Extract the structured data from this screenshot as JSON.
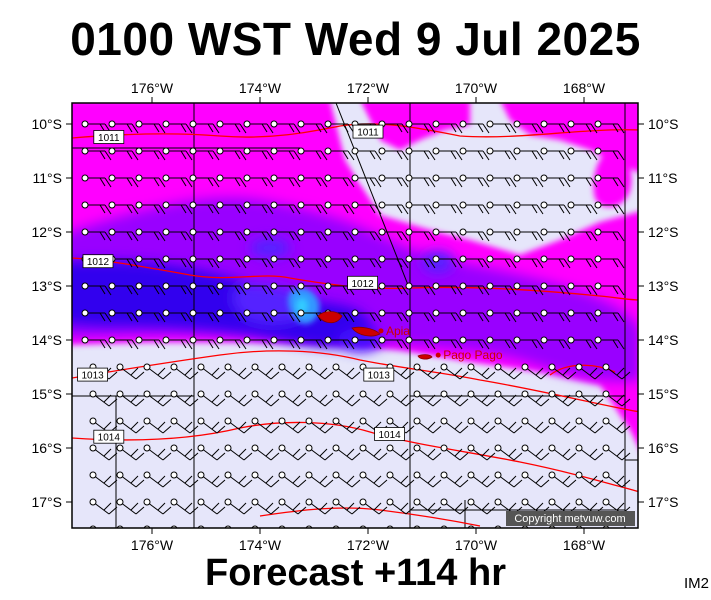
{
  "header": {
    "title": "0100 WST Wed 9 Jul 2025"
  },
  "footer": {
    "forecast": "Forecast +114 hr"
  },
  "corner_label": "IM2",
  "copyright": "Copyright metvuw.com",
  "colors": {
    "background": "#e6e6fa",
    "rain_light": "#ff00ff",
    "rain_medium": "#9900ff",
    "rain_heavy": "#3300ee",
    "rain_extreme": "#3399ff",
    "isobar": "#ff0000",
    "land": "#cc0000"
  },
  "map": {
    "lon_ticks": [
      {
        "label": "176°W",
        "lon": -176
      },
      {
        "label": "174°W",
        "lon": -174
      },
      {
        "label": "172°W",
        "lon": -172
      },
      {
        "label": "170°W",
        "lon": -170
      },
      {
        "label": "168°W",
        "lon": -168
      }
    ],
    "lat_ticks": [
      {
        "label": "10°S",
        "lat": -10
      },
      {
        "label": "11°S",
        "lat": -11
      },
      {
        "label": "12°S",
        "lat": -12
      },
      {
        "label": "13°S",
        "lat": -13
      },
      {
        "label": "14°S",
        "lat": -14
      },
      {
        "label": "15°S",
        "lat": -15
      },
      {
        "label": "16°S",
        "lat": -16
      },
      {
        "label": "17°S",
        "lat": -17
      }
    ],
    "places": [
      {
        "name": "Apia",
        "lon": -171.76,
        "lat": -13.83
      },
      {
        "name": "Pago Pago",
        "lon": -170.7,
        "lat": -14.28
      }
    ],
    "isobar_labels": [
      {
        "text": "1011",
        "lon": -176.8,
        "lat": -10.25
      },
      {
        "text": "1011",
        "lon": -172.0,
        "lat": -10.15
      },
      {
        "text": "1012",
        "lon": -177.0,
        "lat": -12.55
      },
      {
        "text": "1012",
        "lon": -172.1,
        "lat": -12.95
      },
      {
        "text": "1013",
        "lon": -177.1,
        "lat": -14.65
      },
      {
        "text": "1013",
        "lon": -171.8,
        "lat": -14.65
      },
      {
        "text": "1014",
        "lon": -176.8,
        "lat": -15.8
      },
      {
        "text": "1014",
        "lon": -171.6,
        "lat": -15.75
      }
    ]
  }
}
